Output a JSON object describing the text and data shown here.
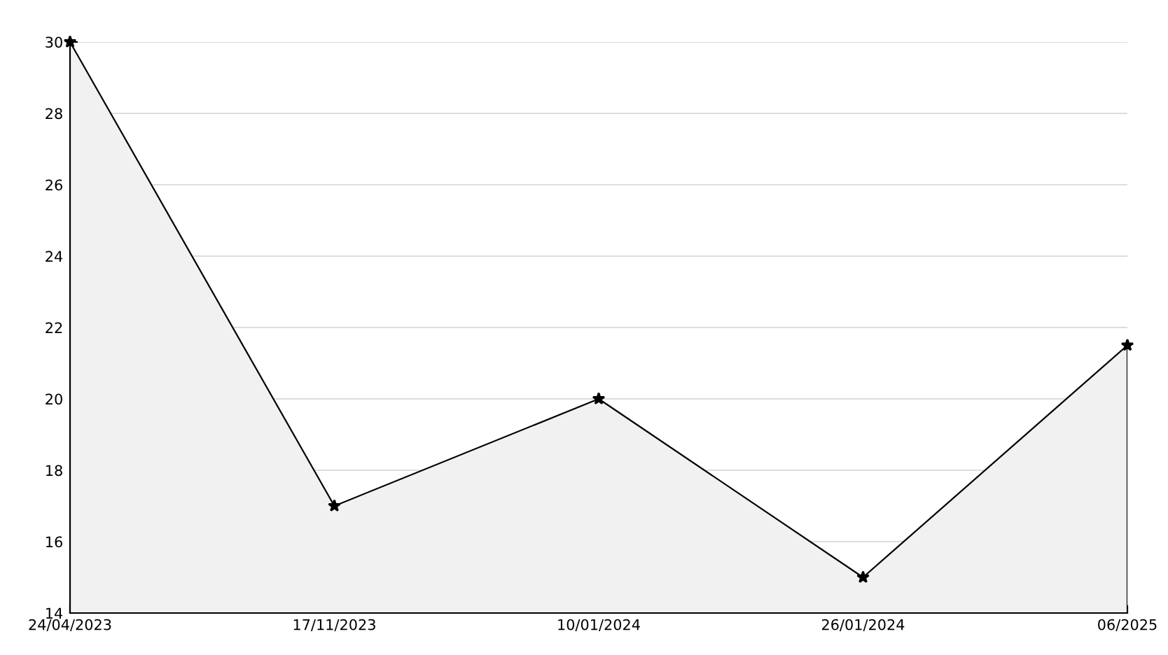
{
  "chart_data": {
    "type": "area",
    "categories": [
      "24/04/2023",
      "17/11/2023",
      "10/01/2024",
      "26/01/2024",
      "06/2025"
    ],
    "series": [
      {
        "color": "#000000",
        "values": [
          30,
          17,
          20,
          15,
          21.5
        ]
      }
    ],
    "ylim": [
      14,
      30
    ],
    "yticks": [
      14,
      16,
      18,
      20,
      22,
      24,
      26,
      28,
      30
    ],
    "grid": "y",
    "marker": "star",
    "line_style": "solid"
  }
}
